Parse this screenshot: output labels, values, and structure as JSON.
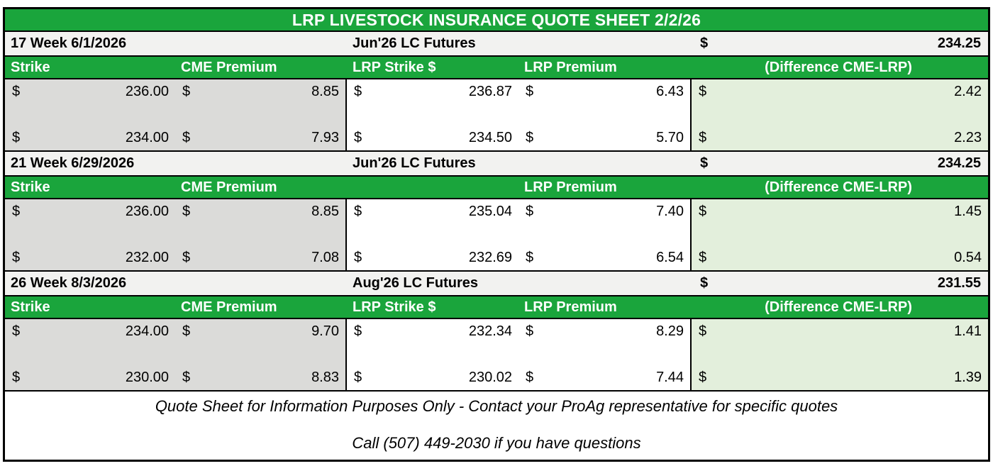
{
  "title": "LRP LIVESTOCK INSURANCE QUOTE SHEET 2/2/26",
  "currency": "$",
  "colors": {
    "header_green": "#1AA53C",
    "gray_fill": "#DBDBD9",
    "light_green_fill": "#E3EFDC",
    "week_row_fill": "#F2F2F0",
    "border": "#000000"
  },
  "blocks": [
    {
      "week_label": "17 Week 6/1/2026",
      "futures_label": "Jun'26 LC Futures",
      "futures_price": "234.25",
      "headers": {
        "strike": "Strike",
        "cme_premium": "CME Premium",
        "lrp_strike": "LRP Strike $",
        "lrp_premium": "LRP Premium",
        "difference": "(Difference CME-LRP)"
      },
      "rows": [
        {
          "strike": "236.00",
          "cme_premium": "8.85",
          "lrp_strike": "236.87",
          "lrp_premium": "6.43",
          "difference": "2.42"
        },
        {
          "strike": "234.00",
          "cme_premium": "7.93",
          "lrp_strike": "234.50",
          "lrp_premium": "5.70",
          "difference": "2.23"
        }
      ]
    },
    {
      "week_label": "21 Week 6/29/2026",
      "futures_label": "Jun'26 LC Futures",
      "futures_price": "234.25",
      "headers": {
        "strike": "Strike",
        "cme_premium": "CME Premium",
        "lrp_strike": "",
        "lrp_premium": "LRP Premium",
        "difference": "(Difference CME-LRP)"
      },
      "rows": [
        {
          "strike": "236.00",
          "cme_premium": "8.85",
          "lrp_strike": "235.04",
          "lrp_premium": "7.40",
          "difference": "1.45"
        },
        {
          "strike": "232.00",
          "cme_premium": "7.08",
          "lrp_strike": "232.69",
          "lrp_premium": "6.54",
          "difference": "0.54"
        }
      ]
    },
    {
      "week_label": "26 Week 8/3/2026",
      "futures_label": "Aug'26 LC Futures",
      "futures_price": "231.55",
      "headers": {
        "strike": "Strike",
        "cme_premium": "CME Premium",
        "lrp_strike": "LRP Strike $",
        "lrp_premium": "LRP Premium",
        "difference": "(Difference CME-LRP)"
      },
      "rows": [
        {
          "strike": "234.00",
          "cme_premium": "9.70",
          "lrp_strike": "232.34",
          "lrp_premium": "8.29",
          "difference": "1.41"
        },
        {
          "strike": "230.00",
          "cme_premium": "8.83",
          "lrp_strike": "230.02",
          "lrp_premium": "7.44",
          "difference": "1.39"
        }
      ]
    }
  ],
  "footer": {
    "line1": "Quote Sheet for Information Purposes Only - Contact your ProAg representative for specific quotes",
    "line2": "Call (507) 449-2030 if you have questions"
  }
}
